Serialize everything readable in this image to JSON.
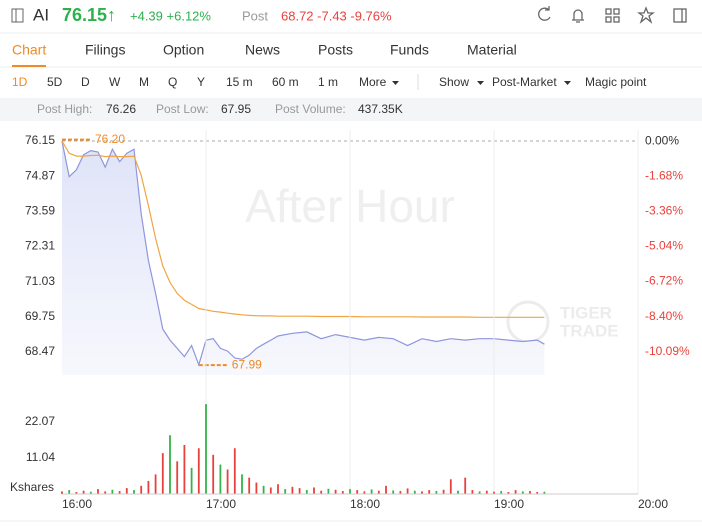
{
  "header": {
    "ticker": "AI",
    "price": "76.15↑",
    "change": "+4.39 +6.12%",
    "post_label": "Post",
    "post_quote": "68.72 -7.43 -9.76%"
  },
  "tabs": [
    "Chart",
    "Filings",
    "Option",
    "News",
    "Posts",
    "Funds",
    "Material"
  ],
  "periods": [
    "1D",
    "5D",
    "D",
    "W",
    "M",
    "Q",
    "Y",
    "15 m",
    "60 m",
    "1 m",
    "More"
  ],
  "options": [
    "Show",
    "Post-Market",
    "Magic point"
  ],
  "stats": [
    {
      "label": "Post High:",
      "value": "76.26"
    },
    {
      "label": "Post Low:",
      "value": "67.95"
    },
    {
      "label": "Post Volume:",
      "value": "437.35K"
    }
  ],
  "chart_data": [
    {
      "type": "line",
      "watermark": "After Hour",
      "brand": [
        "TIGER",
        "TRADE"
      ],
      "area": true,
      "xlim": [
        "16:00",
        "20:00"
      ],
      "x": [
        "16:00",
        "16:03",
        "16:06",
        "16:09",
        "16:12",
        "16:15",
        "16:18",
        "16:21",
        "16:24",
        "16:27",
        "16:30",
        "16:33",
        "16:36",
        "16:39",
        "16:42",
        "16:45",
        "16:48",
        "16:51",
        "16:54",
        "16:57",
        "17:00",
        "17:03",
        "17:06",
        "17:09",
        "17:12",
        "17:15",
        "17:18",
        "17:21",
        "17:24",
        "17:27",
        "17:30",
        "17:36",
        "17:42",
        "17:48",
        "17:54",
        "18:00",
        "18:06",
        "18:12",
        "18:18",
        "18:24",
        "18:30",
        "18:36",
        "18:42",
        "18:48",
        "18:54",
        "19:00",
        "19:06",
        "19:12",
        "19:18",
        "19:21"
      ],
      "series": [
        {
          "color": "#8e96dc",
          "values": [
            76.15,
            74.85,
            75.1,
            75.65,
            75.8,
            75.75,
            75.2,
            75.85,
            75.4,
            75.7,
            75.85,
            73.5,
            71.8,
            70.6,
            69.3,
            68.9,
            68.6,
            68.3,
            68.7,
            68.0,
            68.9,
            68.95,
            68.6,
            68.5,
            68.25,
            68.2,
            68.35,
            68.6,
            68.75,
            68.9,
            69.05,
            69.15,
            69.2,
            68.95,
            69.1,
            69.0,
            68.9,
            69.0,
            68.95,
            68.7,
            68.95,
            68.85,
            68.95,
            68.9,
            68.95,
            68.95,
            68.9,
            68.85,
            68.9,
            68.75
          ]
        },
        {
          "color": "#f0a542",
          "values": [
            76.15,
            75.7,
            75.6,
            75.6,
            75.62,
            75.63,
            75.58,
            75.6,
            75.58,
            75.58,
            75.6,
            74.9,
            73.8,
            72.6,
            71.6,
            71.0,
            70.6,
            70.35,
            70.2,
            70.05,
            70.0,
            69.95,
            69.92,
            69.88,
            69.85,
            69.82,
            69.8,
            69.79,
            69.78,
            69.78,
            69.77,
            69.77,
            69.77,
            69.76,
            69.76,
            69.76,
            69.75,
            69.75,
            69.75,
            69.75,
            69.74,
            69.74,
            69.74,
            69.74,
            69.73,
            69.73,
            69.73,
            69.73,
            69.73,
            69.73
          ]
        }
      ],
      "ylim": [
        67.63,
        76.55
      ],
      "yticks": [
        76.15,
        74.87,
        73.59,
        72.31,
        71.03,
        69.75,
        68.47
      ],
      "y2lim": [
        -11.19,
        0.53
      ],
      "y2ticks": [
        {
          "value": 0,
          "label": "0.00%"
        },
        {
          "value": -1.68,
          "label": "-1.68%"
        },
        {
          "value": -3.36,
          "label": "-3.36%"
        },
        {
          "value": -5.04,
          "label": "-5.04%"
        },
        {
          "value": -6.72,
          "label": "-6.72%"
        },
        {
          "value": -8.4,
          "label": "-8.40%"
        },
        {
          "value": -10.09,
          "label": "-10.09%"
        }
      ],
      "annotations": [
        {
          "x": "16:00",
          "value": 76.2,
          "label": "76.20"
        },
        {
          "x": "16:57",
          "value": 67.99,
          "label": "67.99"
        }
      ]
    },
    {
      "type": "bar",
      "ylabel": "Kshares",
      "xlim": [
        "16:00",
        "20:00"
      ],
      "xticks": [
        "16:00",
        "17:00",
        "18:00",
        "19:00",
        "20:00"
      ],
      "ylim": [
        0,
        30.3
      ],
      "yticks": [
        11.04,
        22.07
      ],
      "x": [
        "16:00",
        "16:03",
        "16:06",
        "16:09",
        "16:12",
        "16:15",
        "16:18",
        "16:21",
        "16:24",
        "16:27",
        "16:30",
        "16:33",
        "16:36",
        "16:39",
        "16:42",
        "16:45",
        "16:48",
        "16:51",
        "16:54",
        "16:57",
        "17:00",
        "17:03",
        "17:06",
        "17:09",
        "17:12",
        "17:15",
        "17:18",
        "17:21",
        "17:24",
        "17:27",
        "17:30",
        "17:33",
        "17:36",
        "17:39",
        "17:42",
        "17:45",
        "17:48",
        "17:51",
        "17:54",
        "17:57",
        "18:00",
        "18:03",
        "18:06",
        "18:09",
        "18:12",
        "18:15",
        "18:18",
        "18:21",
        "18:24",
        "18:27",
        "18:30",
        "18:33",
        "18:36",
        "18:39",
        "18:42",
        "18:45",
        "18:48",
        "18:51",
        "18:54",
        "18:57",
        "19:00",
        "19:03",
        "19:06",
        "19:09",
        "19:12",
        "19:15",
        "19:18",
        "19:21"
      ],
      "values": [
        0.8,
        1.2,
        0.6,
        1.0,
        0.7,
        1.5,
        0.8,
        1.3,
        0.9,
        1.8,
        1.2,
        2.5,
        4.0,
        6.0,
        12.5,
        18.0,
        10.0,
        15.0,
        8.0,
        14.0,
        27.5,
        12.0,
        9.0,
        7.5,
        14.0,
        6.0,
        5.0,
        3.5,
        2.5,
        2.0,
        3.0,
        1.5,
        2.2,
        1.8,
        1.2,
        2.0,
        1.0,
        1.6,
        1.3,
        0.9,
        1.5,
        1.2,
        0.8,
        1.4,
        1.0,
        2.5,
        1.1,
        0.9,
        1.7,
        1.0,
        0.8,
        1.2,
        0.9,
        1.3,
        4.5,
        1.0,
        5.0,
        1.2,
        0.8,
        1.0,
        0.7,
        0.9,
        0.6,
        1.2,
        0.8,
        0.9,
        0.6,
        0.7
      ],
      "colors": [
        "#e8413c",
        "#33b34a",
        "#e8413c",
        "#e8413c",
        "#33b34a",
        "#e8413c",
        "#e8413c",
        "#33b34a",
        "#e8413c",
        "#e8413c",
        "#33b34a",
        "#e8413c",
        "#e8413c",
        "#e8413c",
        "#e8413c",
        "#33b34a",
        "#e8413c",
        "#e8413c",
        "#33b34a",
        "#e8413c",
        "#33b34a",
        "#e8413c",
        "#33b34a",
        "#e8413c",
        "#e8413c",
        "#33b34a",
        "#e8413c",
        "#e8413c",
        "#33b34a",
        "#e8413c",
        "#e8413c",
        "#33b34a",
        "#e8413c",
        "#e8413c",
        "#33b34a",
        "#e8413c",
        "#e8413c",
        "#33b34a",
        "#e8413c",
        "#e8413c",
        "#33b34a",
        "#e8413c",
        "#e8413c",
        "#33b34a",
        "#e8413c",
        "#e8413c",
        "#33b34a",
        "#e8413c",
        "#e8413c",
        "#33b34a",
        "#e8413c",
        "#e8413c",
        "#33b34a",
        "#e8413c",
        "#e8413c",
        "#33b34a",
        "#e8413c",
        "#e8413c",
        "#33b34a",
        "#e8413c",
        "#e8413c",
        "#33b34a",
        "#e8413c",
        "#e8413c",
        "#33b34a",
        "#e8413c",
        "#e8413c",
        "#33b34a"
      ]
    }
  ]
}
